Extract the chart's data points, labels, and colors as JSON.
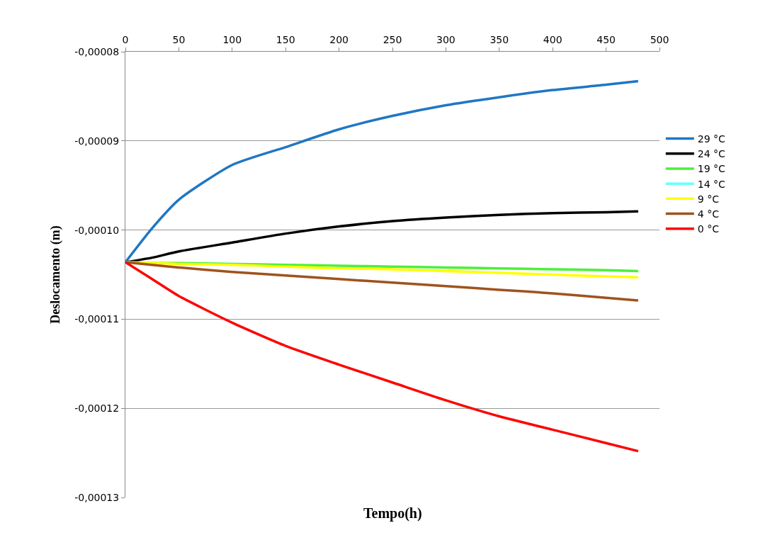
{
  "chart_data": {
    "type": "line",
    "xlabel": "Tempo(h)",
    "ylabel": "Deslocamento (m)",
    "x": [
      0,
      25,
      50,
      100,
      150,
      200,
      250,
      300,
      350,
      400,
      450,
      480
    ],
    "series": [
      {
        "name": "29 °C",
        "color": "#1f77c4",
        "values": [
          -0.00010361,
          -9.98e-05,
          -9.66e-05,
          -9.27e-05,
          -9.07e-05,
          -8.87e-05,
          -8.72e-05,
          -8.6e-05,
          -8.51e-05,
          -8.43e-05,
          -8.37e-05,
          -8.33e-05
        ]
      },
      {
        "name": "24 °C",
        "color": "#000000",
        "values": [
          -0.00010361,
          -0.0001031,
          -0.0001024,
          -0.0001014,
          -0.0001004,
          -9.96e-05,
          -9.9e-05,
          -9.86e-05,
          -9.83e-05,
          -9.81e-05,
          -9.8e-05,
          -9.79e-05
        ]
      },
      {
        "name": "19 °C",
        "color": "#4cf03a",
        "values": [
          -0.00010361,
          -0.0001037,
          -0.0001037,
          -0.0001038,
          -0.0001039,
          -0.000104,
          -0.0001041,
          -0.0001042,
          -0.0001043,
          -0.0001044,
          -0.0001045,
          -0.0001046
        ]
      },
      {
        "name": "14 °C",
        "color": "#66ffff",
        "values": [
          null,
          null,
          null,
          null,
          null,
          null,
          null,
          null,
          null,
          null,
          null,
          null
        ]
      },
      {
        "name": "9 °C",
        "color": "#ffff00",
        "values": [
          -0.00010361,
          -0.0001037,
          -0.0001038,
          -0.0001039,
          -0.0001041,
          -0.0001043,
          -0.0001044,
          -0.0001046,
          -0.0001048,
          -0.000105,
          -0.0001052,
          -0.0001053
        ]
      },
      {
        "name": "4 °C",
        "color": "#a0521e",
        "values": [
          -0.00010361,
          -0.0001039,
          -0.0001042,
          -0.0001047,
          -0.0001051,
          -0.0001055,
          -0.0001059,
          -0.0001063,
          -0.0001067,
          -0.0001071,
          -0.0001076,
          -0.0001079
        ]
      },
      {
        "name": "0 °C",
        "color": "#ff0000",
        "values": [
          -0.00010361,
          -0.0001055,
          -0.0001074,
          -0.0001104,
          -0.000113,
          -0.0001151,
          -0.0001171,
          -0.0001191,
          -0.0001209,
          -0.0001224,
          -0.0001239,
          -0.0001248
        ]
      }
    ],
    "xlim": [
      0,
      500
    ],
    "xticks": [
      0,
      50,
      100,
      150,
      200,
      250,
      300,
      350,
      400,
      450,
      500
    ],
    "ylim": [
      -0.00013,
      -8e-05
    ],
    "yticks": [
      {
        "value": -0.00013,
        "label": "-0,00013"
      },
      {
        "value": -0.00012,
        "label": "-0,00012"
      },
      {
        "value": -0.00011,
        "label": "-0,00011"
      },
      {
        "value": -0.0001,
        "label": "-0,00010"
      },
      {
        "value": -9e-05,
        "label": "-0,00009"
      },
      {
        "value": -8e-05,
        "label": "-0,00008"
      }
    ],
    "grid": "y",
    "legend": "right",
    "marker": "none",
    "line_style": "solid"
  }
}
